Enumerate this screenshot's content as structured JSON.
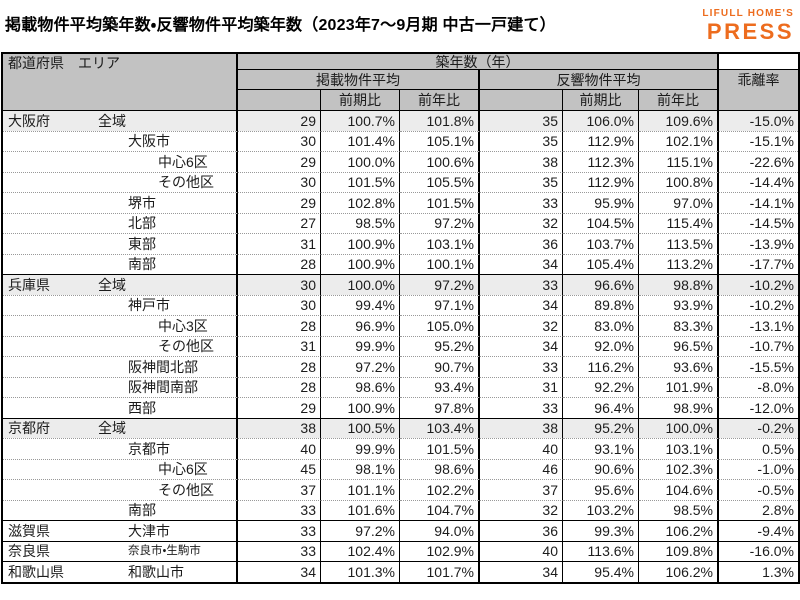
{
  "title": "掲載物件平均築年数・反響物件平均築年数（2023年7～9月期 中古一戸建て）",
  "logo": {
    "line1": "LIFULL HOME'S",
    "line2": "PRESS"
  },
  "colors": {
    "accent": "#ed6c1e",
    "header_bg": "#c2c2c2",
    "highlight_row": "#ececec",
    "border": "#000000"
  },
  "header": {
    "col1": "都道府県　エリア",
    "age_group": "築年数（年）",
    "listed_group": "掲載物件平均",
    "response_group": "反響物件平均",
    "divergence": "乖離率",
    "prev_period": "前期比",
    "prev_year": "前年比"
  },
  "chart_data": {
    "type": "table",
    "title": "掲載物件平均築年数・反響物件平均築年数（2023年7～9月期 中古一戸建て）",
    "columns": [
      "都道府県",
      "エリア",
      "掲載物件平均 築年数（年）",
      "掲載 前期比",
      "掲載 前年比",
      "反響物件平均 築年数（年）",
      "反響 前期比",
      "反響 前年比",
      "乖離率"
    ],
    "rows": [
      {
        "prefecture": "大阪府",
        "area": "全域",
        "indent": 0,
        "group_start": true,
        "highlight": true,
        "listed_age": 29,
        "listed_qoq": "100.7%",
        "listed_yoy": "101.8%",
        "inquiry_age": 35,
        "inquiry_qoq": "106.0%",
        "inquiry_yoy": "109.6%",
        "gap": "-15.0%"
      },
      {
        "prefecture": "",
        "area": "大阪市",
        "indent": 1,
        "group_start": false,
        "highlight": false,
        "listed_age": 30,
        "listed_qoq": "101.4%",
        "listed_yoy": "105.1%",
        "inquiry_age": 35,
        "inquiry_qoq": "112.9%",
        "inquiry_yoy": "102.1%",
        "gap": "-15.1%"
      },
      {
        "prefecture": "",
        "area": "中心6区",
        "indent": 2,
        "group_start": false,
        "highlight": false,
        "listed_age": 29,
        "listed_qoq": "100.0%",
        "listed_yoy": "100.6%",
        "inquiry_age": 38,
        "inquiry_qoq": "112.3%",
        "inquiry_yoy": "115.1%",
        "gap": "-22.6%"
      },
      {
        "prefecture": "",
        "area": "その他区",
        "indent": 2,
        "group_start": false,
        "highlight": false,
        "listed_age": 30,
        "listed_qoq": "101.5%",
        "listed_yoy": "105.5%",
        "inquiry_age": 35,
        "inquiry_qoq": "112.9%",
        "inquiry_yoy": "100.8%",
        "gap": "-14.4%"
      },
      {
        "prefecture": "",
        "area": "堺市",
        "indent": 1,
        "group_start": false,
        "highlight": false,
        "listed_age": 29,
        "listed_qoq": "102.8%",
        "listed_yoy": "101.5%",
        "inquiry_age": 33,
        "inquiry_qoq": "95.9%",
        "inquiry_yoy": "97.0%",
        "gap": "-14.1%"
      },
      {
        "prefecture": "",
        "area": "北部",
        "indent": 1,
        "group_start": false,
        "highlight": false,
        "listed_age": 27,
        "listed_qoq": "98.5%",
        "listed_yoy": "97.2%",
        "inquiry_age": 32,
        "inquiry_qoq": "104.5%",
        "inquiry_yoy": "115.4%",
        "gap": "-14.5%"
      },
      {
        "prefecture": "",
        "area": "東部",
        "indent": 1,
        "group_start": false,
        "highlight": false,
        "listed_age": 31,
        "listed_qoq": "100.9%",
        "listed_yoy": "103.1%",
        "inquiry_age": 36,
        "inquiry_qoq": "103.7%",
        "inquiry_yoy": "113.5%",
        "gap": "-13.9%"
      },
      {
        "prefecture": "",
        "area": "南部",
        "indent": 1,
        "group_start": false,
        "highlight": false,
        "listed_age": 28,
        "listed_qoq": "100.9%",
        "listed_yoy": "100.1%",
        "inquiry_age": 34,
        "inquiry_qoq": "105.4%",
        "inquiry_yoy": "113.2%",
        "gap": "-17.7%"
      },
      {
        "prefecture": "兵庫県",
        "area": "全域",
        "indent": 0,
        "group_start": true,
        "highlight": true,
        "listed_age": 30,
        "listed_qoq": "100.0%",
        "listed_yoy": "97.2%",
        "inquiry_age": 33,
        "inquiry_qoq": "96.6%",
        "inquiry_yoy": "98.8%",
        "gap": "-10.2%"
      },
      {
        "prefecture": "",
        "area": "神戸市",
        "indent": 1,
        "group_start": false,
        "highlight": false,
        "listed_age": 30,
        "listed_qoq": "99.4%",
        "listed_yoy": "97.1%",
        "inquiry_age": 34,
        "inquiry_qoq": "89.8%",
        "inquiry_yoy": "93.9%",
        "gap": "-10.2%"
      },
      {
        "prefecture": "",
        "area": "中心3区",
        "indent": 2,
        "group_start": false,
        "highlight": false,
        "listed_age": 28,
        "listed_qoq": "96.9%",
        "listed_yoy": "105.0%",
        "inquiry_age": 32,
        "inquiry_qoq": "83.0%",
        "inquiry_yoy": "83.3%",
        "gap": "-13.1%"
      },
      {
        "prefecture": "",
        "area": "その他区",
        "indent": 2,
        "group_start": false,
        "highlight": false,
        "listed_age": 31,
        "listed_qoq": "99.9%",
        "listed_yoy": "95.2%",
        "inquiry_age": 34,
        "inquiry_qoq": "92.0%",
        "inquiry_yoy": "96.5%",
        "gap": "-10.7%"
      },
      {
        "prefecture": "",
        "area": "阪神間北部",
        "indent": 1,
        "group_start": false,
        "highlight": false,
        "listed_age": 28,
        "listed_qoq": "97.2%",
        "listed_yoy": "90.7%",
        "inquiry_age": 33,
        "inquiry_qoq": "116.2%",
        "inquiry_yoy": "93.6%",
        "gap": "-15.5%"
      },
      {
        "prefecture": "",
        "area": "阪神間南部",
        "indent": 1,
        "group_start": false,
        "highlight": false,
        "listed_age": 28,
        "listed_qoq": "98.6%",
        "listed_yoy": "93.4%",
        "inquiry_age": 31,
        "inquiry_qoq": "92.2%",
        "inquiry_yoy": "101.9%",
        "gap": "-8.0%"
      },
      {
        "prefecture": "",
        "area": "西部",
        "indent": 1,
        "group_start": false,
        "highlight": false,
        "listed_age": 29,
        "listed_qoq": "100.9%",
        "listed_yoy": "97.8%",
        "inquiry_age": 33,
        "inquiry_qoq": "96.4%",
        "inquiry_yoy": "98.9%",
        "gap": "-12.0%"
      },
      {
        "prefecture": "京都府",
        "area": "全域",
        "indent": 0,
        "group_start": true,
        "highlight": true,
        "listed_age": 38,
        "listed_qoq": "100.5%",
        "listed_yoy": "103.4%",
        "inquiry_age": 38,
        "inquiry_qoq": "95.2%",
        "inquiry_yoy": "100.0%",
        "gap": "-0.2%"
      },
      {
        "prefecture": "",
        "area": "京都市",
        "indent": 1,
        "group_start": false,
        "highlight": false,
        "listed_age": 40,
        "listed_qoq": "99.9%",
        "listed_yoy": "101.5%",
        "inquiry_age": 40,
        "inquiry_qoq": "93.1%",
        "inquiry_yoy": "103.1%",
        "gap": "0.5%"
      },
      {
        "prefecture": "",
        "area": "中心6区",
        "indent": 2,
        "group_start": false,
        "highlight": false,
        "listed_age": 45,
        "listed_qoq": "98.1%",
        "listed_yoy": "98.6%",
        "inquiry_age": 46,
        "inquiry_qoq": "90.6%",
        "inquiry_yoy": "102.3%",
        "gap": "-1.0%"
      },
      {
        "prefecture": "",
        "area": "その他区",
        "indent": 2,
        "group_start": false,
        "highlight": false,
        "listed_age": 37,
        "listed_qoq": "101.1%",
        "listed_yoy": "102.2%",
        "inquiry_age": 37,
        "inquiry_qoq": "95.6%",
        "inquiry_yoy": "104.6%",
        "gap": "-0.5%"
      },
      {
        "prefecture": "",
        "area": "南部",
        "indent": 1,
        "group_start": false,
        "highlight": false,
        "listed_age": 33,
        "listed_qoq": "101.6%",
        "listed_yoy": "104.7%",
        "inquiry_age": 32,
        "inquiry_qoq": "103.2%",
        "inquiry_yoy": "98.5%",
        "gap": "2.8%"
      },
      {
        "prefecture": "滋賀県",
        "area": "大津市",
        "indent": 1,
        "group_start": true,
        "highlight": false,
        "listed_age": 33,
        "listed_qoq": "97.2%",
        "listed_yoy": "94.0%",
        "inquiry_age": 36,
        "inquiry_qoq": "99.3%",
        "inquiry_yoy": "106.2%",
        "gap": "-9.4%"
      },
      {
        "prefecture": "奈良県",
        "area": "奈良市・生駒市",
        "indent": 1,
        "small": true,
        "group_start": true,
        "highlight": false,
        "listed_age": 33,
        "listed_qoq": "102.4%",
        "listed_yoy": "102.9%",
        "inquiry_age": 40,
        "inquiry_qoq": "113.6%",
        "inquiry_yoy": "109.8%",
        "gap": "-16.0%"
      },
      {
        "prefecture": "和歌山県",
        "area": "和歌山市",
        "indent": 1,
        "group_start": true,
        "highlight": false,
        "listed_age": 34,
        "listed_qoq": "101.3%",
        "listed_yoy": "101.7%",
        "inquiry_age": 34,
        "inquiry_qoq": "95.4%",
        "inquiry_yoy": "106.2%",
        "gap": "1.3%"
      }
    ]
  }
}
